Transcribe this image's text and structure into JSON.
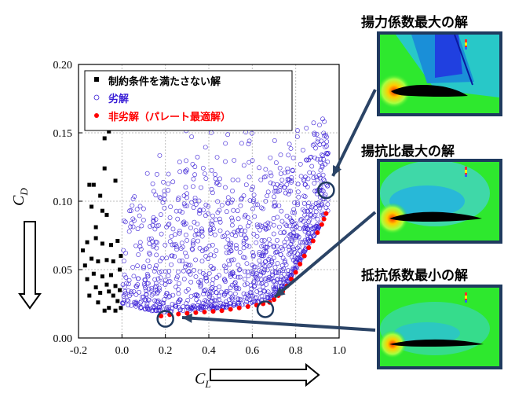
{
  "chart_data": {
    "type": "scatter",
    "xlim": [
      -0.2,
      1.0
    ],
    "ylim": [
      0.0,
      0.2
    ],
    "x_ticks": [
      "-0.2",
      "0.0",
      "0.2",
      "0.4",
      "0.6",
      "0.8",
      "1.0"
    ],
    "y_ticks": [
      "0.00",
      "0.05",
      "0.10",
      "0.15",
      "0.20"
    ],
    "xlabel_main": "C",
    "xlabel_sub": "L",
    "ylabel_main": "C",
    "ylabel_sub": "D",
    "grid": true,
    "legend_position": "top-left",
    "series": [
      {
        "name": "制約条件を満たさない解",
        "marker": "square",
        "color": "#000000",
        "points": [
          [
            -0.18,
            0.064
          ],
          [
            -0.17,
            0.053
          ],
          [
            -0.16,
            0.043
          ],
          [
            -0.16,
            0.07
          ],
          [
            -0.15,
            0.112
          ],
          [
            -0.15,
            0.031
          ],
          [
            -0.14,
            0.096
          ],
          [
            -0.14,
            0.058
          ],
          [
            -0.13,
            0.112
          ],
          [
            -0.13,
            0.047
          ],
          [
            -0.12,
            0.037
          ],
          [
            -0.12,
            0.073
          ],
          [
            -0.11,
            0.026
          ],
          [
            -0.11,
            0.056
          ],
          [
            -0.1,
            0.104
          ],
          [
            -0.1,
            0.033
          ],
          [
            -0.09,
            0.069
          ],
          [
            -0.09,
            0.045
          ],
          [
            -0.08,
            0.146
          ],
          [
            -0.08,
            0.124
          ],
          [
            -0.08,
            0.02
          ],
          [
            -0.07,
            0.09
          ],
          [
            -0.07,
            0.057
          ],
          [
            -0.07,
            0.039
          ],
          [
            -0.06,
            0.151
          ],
          [
            -0.06,
            0.022
          ],
          [
            -0.06,
            0.034
          ],
          [
            -0.05,
            0.068
          ],
          [
            -0.05,
            0.046
          ],
          [
            -0.04,
            0.031
          ],
          [
            -0.04,
            0.056
          ],
          [
            -0.03,
            0.115
          ],
          [
            -0.03,
            0.02
          ],
          [
            -0.03,
            0.038
          ],
          [
            -0.02,
            0.071
          ],
          [
            -0.02,
            0.027
          ],
          [
            -0.01,
            0.05
          ],
          [
            -0.01,
            0.035
          ],
          [
            -0.005,
            0.06
          ],
          [
            -0.005,
            0.022
          ],
          [
            -0.12,
            0.081
          ],
          [
            -0.09,
            0.093
          ]
        ]
      },
      {
        "name": "劣解",
        "marker": "circle-open",
        "color": "#3a1fd6",
        "points": [],
        "region": {
          "x_min": 0.0,
          "x_max": 0.95,
          "y_min_curve": "pareto",
          "y_max": 0.17,
          "count": 1200
        }
      },
      {
        "name": "非劣解（パレート最適解）",
        "marker": "dot",
        "color": "#ff0000",
        "points": [
          [
            0.18,
            0.016
          ],
          [
            0.22,
            0.017
          ],
          [
            0.26,
            0.0175
          ],
          [
            0.3,
            0.018
          ],
          [
            0.34,
            0.0185
          ],
          [
            0.38,
            0.019
          ],
          [
            0.42,
            0.0195
          ],
          [
            0.46,
            0.02
          ],
          [
            0.5,
            0.021
          ],
          [
            0.54,
            0.022
          ],
          [
            0.58,
            0.023
          ],
          [
            0.62,
            0.024
          ],
          [
            0.65,
            0.025
          ],
          [
            0.68,
            0.026
          ],
          [
            0.7,
            0.028
          ],
          [
            0.72,
            0.031
          ],
          [
            0.74,
            0.034
          ],
          [
            0.76,
            0.038
          ],
          [
            0.78,
            0.043
          ],
          [
            0.8,
            0.048
          ],
          [
            0.82,
            0.054
          ],
          [
            0.84,
            0.06
          ],
          [
            0.86,
            0.066
          ],
          [
            0.88,
            0.071
          ],
          [
            0.9,
            0.077
          ],
          [
            0.92,
            0.083
          ],
          [
            0.93,
            0.087
          ],
          [
            0.94,
            0.091
          ]
        ]
      }
    ],
    "highlights": [
      {
        "x": 0.2,
        "y": 0.014
      },
      {
        "x": 0.66,
        "y": 0.021
      },
      {
        "x": 0.94,
        "y": 0.108
      }
    ]
  },
  "panels": [
    {
      "title": "揚力係数最大の解",
      "flow": "max-lift"
    },
    {
      "title": "揚抗比最大の解",
      "flow": "max-ld"
    },
    {
      "title": "抵抗係数最小の解",
      "flow": "min-drag"
    }
  ]
}
